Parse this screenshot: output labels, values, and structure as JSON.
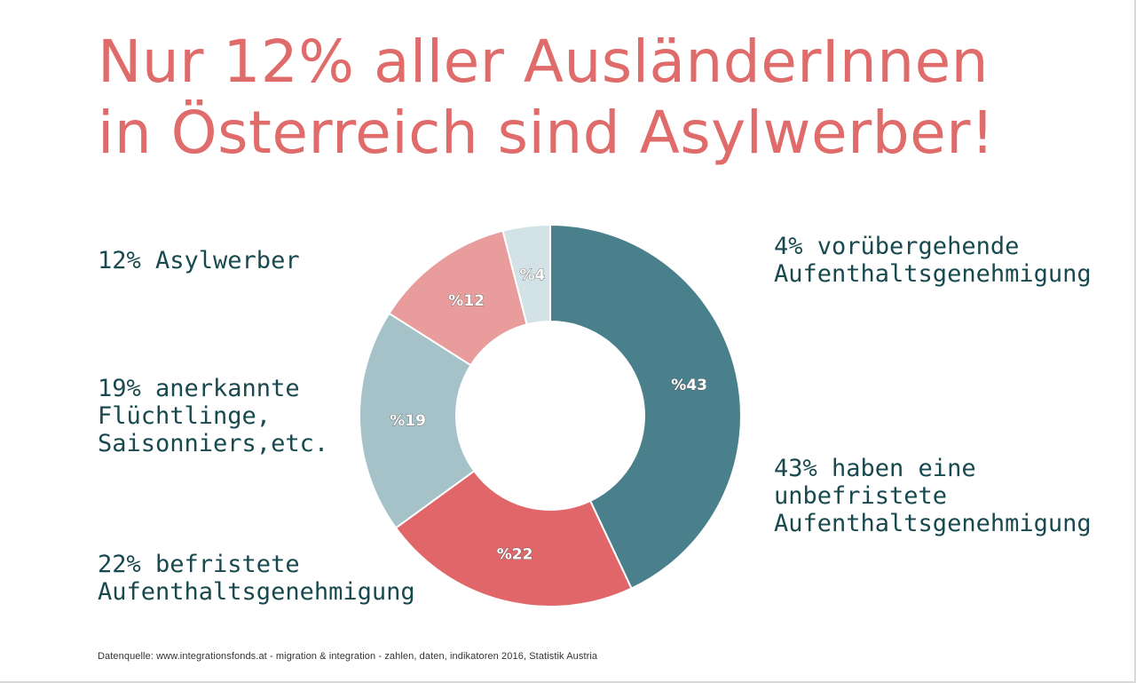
{
  "title": {
    "line1": "Nur 12% aller AusländerInnen",
    "line2": "in Österreich sind Asylwerber!"
  },
  "colors": {
    "title": "#e06b6b",
    "label_text": "#17494f"
  },
  "chart_data": {
    "type": "pie",
    "donut": true,
    "slices": [
      {
        "value": 43,
        "label": "%43",
        "color": "#4a7f8c"
      },
      {
        "value": 22,
        "label": "%22",
        "color": "#e0666a"
      },
      {
        "value": 19,
        "label": "%19",
        "color": "#a4c2c7"
      },
      {
        "value": 12,
        "label": "%12",
        "color": "#e89c9c"
      },
      {
        "value": 4,
        "label": "%4",
        "color": "#d3e2e6"
      }
    ],
    "annotations": {
      "asyl": [
        "12% Asylwerber"
      ],
      "anerkannt": [
        "19% anerkannte",
        "Flüchtlinge,",
        "Saisonniers,etc."
      ],
      "befristet": [
        "22% befristete",
        "Aufenthaltsgenehmigung"
      ],
      "voruebergehend": [
        "4% vorübergehende",
        "Aufenthaltsgenehmigung"
      ],
      "unbefristet": [
        "43% haben eine",
        "unbefristete",
        "Aufenthaltsgenehmigung"
      ]
    }
  },
  "source": "Datenquelle: www.integrationsfonds.at - migration & integration - zahlen, daten, indikatoren 2016, Statistik Austria"
}
